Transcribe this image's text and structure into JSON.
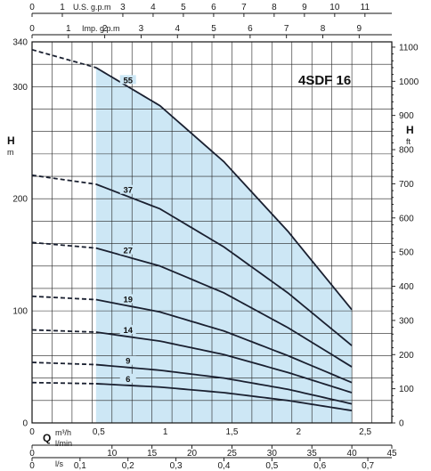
{
  "chart_data": {
    "type": "line",
    "title": "4SDF 16",
    "left_axis": {
      "label": "H",
      "unit": "m",
      "ylim": [
        0,
        340
      ],
      "ticks": [
        0,
        100,
        200,
        300,
        340
      ]
    },
    "right_axis": {
      "label": "H",
      "unit": "ft",
      "ticks": [
        0,
        100,
        200,
        300,
        400,
        500,
        600,
        700,
        800,
        900,
        1000,
        1100
      ]
    },
    "bottom_axes": [
      {
        "id": "m3h",
        "label": "Q",
        "unit": "m³/h",
        "ticks": [
          "0",
          "0,5",
          "1",
          "1,5",
          "2",
          "2,5"
        ]
      },
      {
        "id": "lmin",
        "unit": "l/min",
        "ticks": [
          "0",
          "10",
          "15",
          "20",
          "25",
          "30",
          "35",
          "40",
          "45"
        ]
      },
      {
        "id": "ls",
        "unit": "l/s",
        "ticks": [
          "0",
          "0,1",
          "0,2",
          "0,3",
          "0,4",
          "0,5",
          "0,6",
          "0,7"
        ]
      }
    ],
    "top_axes": [
      {
        "id": "usgpm",
        "unit": "U.S. g.p.m",
        "ticks": [
          "0",
          "1",
          "3",
          "4",
          "5",
          "6",
          "7",
          "8",
          "9",
          "10",
          "11"
        ]
      },
      {
        "id": "impgpm",
        "unit": "Imp. g.p.m",
        "ticks": [
          "0",
          "1",
          "2",
          "3",
          "4",
          "5",
          "6",
          "7",
          "8",
          "9"
        ]
      }
    ],
    "x_unit": "l/min",
    "operating_range_lmin": [
      8,
      40
    ],
    "series": [
      {
        "name": "55",
        "dashed_to_lmin": 8,
        "x": [
          0,
          8,
          16,
          24,
          32,
          40
        ],
        "y": [
          333,
          317,
          283,
          233,
          171,
          101
        ]
      },
      {
        "name": "37",
        "dashed_to_lmin": 8,
        "x": [
          0,
          8,
          16,
          24,
          32,
          40
        ],
        "y": [
          221,
          213,
          191,
          157,
          116,
          69
        ]
      },
      {
        "name": "27",
        "dashed_to_lmin": 8,
        "x": [
          0,
          8,
          16,
          24,
          32,
          40
        ],
        "y": [
          161,
          156,
          140,
          116,
          85,
          50
        ]
      },
      {
        "name": "19",
        "dashed_to_lmin": 8,
        "x": [
          0,
          8,
          16,
          24,
          32,
          40
        ],
        "y": [
          113,
          110,
          99,
          82,
          60,
          36
        ]
      },
      {
        "name": "14",
        "dashed_to_lmin": 8,
        "x": [
          0,
          8,
          16,
          24,
          32,
          40
        ],
        "y": [
          83,
          81,
          73,
          61,
          45,
          27
        ]
      },
      {
        "name": "9",
        "dashed_to_lmin": 8,
        "x": [
          0,
          8,
          16,
          24,
          32,
          40
        ],
        "y": [
          54,
          52,
          47,
          40,
          30,
          17
        ]
      },
      {
        "name": "6",
        "dashed_to_lmin": 8,
        "x": [
          0,
          8,
          16,
          24,
          32,
          40
        ],
        "y": [
          36,
          35,
          32,
          27,
          20,
          11
        ]
      }
    ],
    "grid": true,
    "colors": {
      "operating_fill": "#cde7f5",
      "grid": "#222222",
      "curve": "#1a2030"
    }
  }
}
